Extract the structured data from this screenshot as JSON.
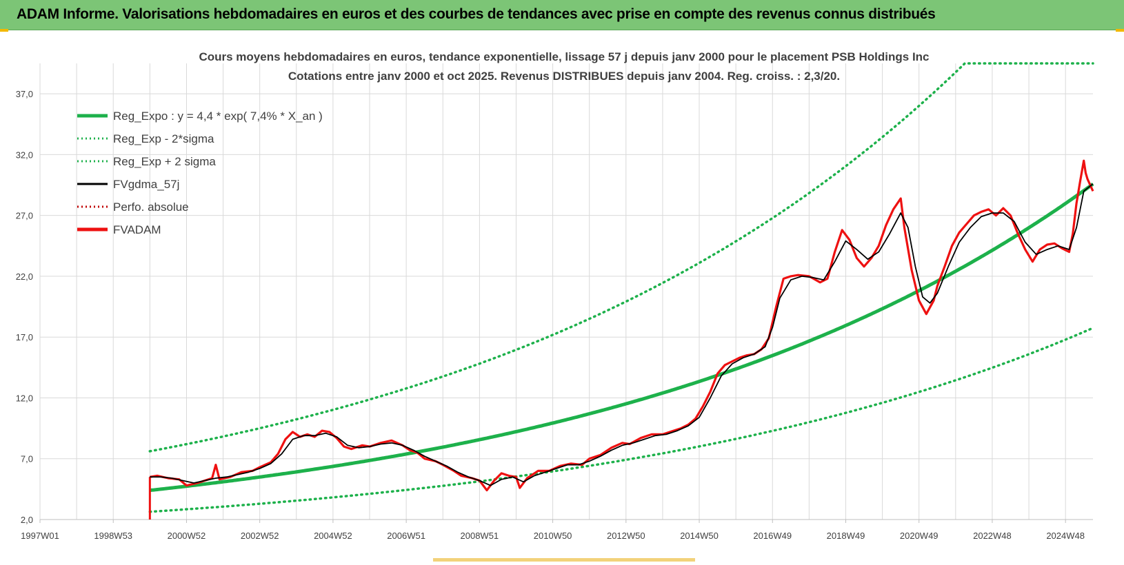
{
  "header": {
    "title": "ADAM Informe. Valorisations hebdomadaires en euros et des courbes de tendances avec prise en compte des revenus connus distribués"
  },
  "colors": {
    "header_bg": "#7cc576",
    "trend": "#1db14b",
    "band": "#1db14b",
    "gdma": "#000000",
    "perfo": "#c00000",
    "fvadam": "#ee1111",
    "grid": "#d9d9d9"
  },
  "chart_data": {
    "type": "line",
    "title_line1": "Cours moyens hebdomadaires en euros, tendance exponentielle, lissage 57 j depuis janv 2000 pour le placement PSB Holdings Inc",
    "title_line2": "Cotations entre janv 2000 et oct 2025. Revenus DISTRIBUES depuis janv 2004. Reg. croiss. : 2,3/20.",
    "x_ticks": [
      "1997W01",
      "1998W53",
      "2000W52",
      "2002W52",
      "2004W52",
      "2006W51",
      "2008W51",
      "2010W50",
      "2012W50",
      "2014W50",
      "2016W49",
      "2018W49",
      "2020W49",
      "2022W48",
      "2024W48"
    ],
    "x_tick_years": [
      1997.0,
      1999.0,
      2001.0,
      2003.0,
      2005.0,
      2007.0,
      2009.0,
      2011.0,
      2013.0,
      2015.0,
      2017.0,
      2019.0,
      2021.0,
      2023.0,
      2025.0
    ],
    "xlim": [
      1997.0,
      2025.75
    ],
    "y_ticks": [
      "2,0",
      "7,0",
      "12,0",
      "17,0",
      "22,0",
      "27,0",
      "32,0",
      "37,0"
    ],
    "ylim": [
      2.0,
      39.5
    ],
    "grid": true,
    "legend_position": "top-left",
    "legend": [
      {
        "label": "Reg_Expo : y = 4,4 * exp( 7,4% *  X_an )",
        "style": "solid-thick",
        "color": "#1db14b"
      },
      {
        "label": "Reg_Exp - 2*sigma",
        "style": "dotted",
        "color": "#1db14b"
      },
      {
        "label": "Reg_Exp + 2 sigma",
        "style": "dotted",
        "color": "#1db14b"
      },
      {
        "label": "FVgdma_57j",
        "style": "solid",
        "color": "#000000"
      },
      {
        "label": "Perfo. absolue",
        "style": "dotted",
        "color": "#c00000"
      },
      {
        "label": "FVADAM",
        "style": "solid-thick",
        "color": "#ee1111"
      }
    ],
    "regression": {
      "a": 4.4,
      "rate": 0.074,
      "x_start": 2000.0,
      "x_end": 2025.75
    },
    "band_lower_factor": 0.6,
    "band_upper_factor": 1.73,
    "band_upper_cap": 39.5,
    "fvadam_start_drop": [
      2.0,
      5.5
    ],
    "fvadam": [
      [
        2000.0,
        5.5
      ],
      [
        2000.2,
        5.6
      ],
      [
        2000.5,
        5.4
      ],
      [
        2000.8,
        5.3
      ],
      [
        2001.0,
        4.8
      ],
      [
        2001.3,
        5.0
      ],
      [
        2001.5,
        5.2
      ],
      [
        2001.7,
        5.4
      ],
      [
        2001.8,
        6.5
      ],
      [
        2001.9,
        5.3
      ],
      [
        2002.2,
        5.5
      ],
      [
        2002.5,
        5.9
      ],
      [
        2002.8,
        6.0
      ],
      [
        2003.0,
        6.3
      ],
      [
        2003.3,
        6.7
      ],
      [
        2003.5,
        7.4
      ],
      [
        2003.7,
        8.6
      ],
      [
        2003.9,
        9.2
      ],
      [
        2004.1,
        8.8
      ],
      [
        2004.3,
        9.0
      ],
      [
        2004.5,
        8.8
      ],
      [
        2004.7,
        9.3
      ],
      [
        2004.9,
        9.2
      ],
      [
        2005.1,
        8.7
      ],
      [
        2005.3,
        8.0
      ],
      [
        2005.5,
        7.8
      ],
      [
        2005.8,
        8.1
      ],
      [
        2006.0,
        8.0
      ],
      [
        2006.3,
        8.3
      ],
      [
        2006.6,
        8.5
      ],
      [
        2006.9,
        8.1
      ],
      [
        2007.1,
        7.7
      ],
      [
        2007.3,
        7.5
      ],
      [
        2007.5,
        7.0
      ],
      [
        2007.8,
        6.8
      ],
      [
        2008.0,
        6.5
      ],
      [
        2008.3,
        6.0
      ],
      [
        2008.5,
        5.6
      ],
      [
        2008.8,
        5.4
      ],
      [
        2009.0,
        5.2
      ],
      [
        2009.2,
        4.4
      ],
      [
        2009.4,
        5.2
      ],
      [
        2009.6,
        5.8
      ],
      [
        2009.8,
        5.6
      ],
      [
        2010.0,
        5.5
      ],
      [
        2010.1,
        4.6
      ],
      [
        2010.3,
        5.4
      ],
      [
        2010.6,
        6.0
      ],
      [
        2010.9,
        6.0
      ],
      [
        2011.2,
        6.4
      ],
      [
        2011.5,
        6.6
      ],
      [
        2011.8,
        6.5
      ],
      [
        2012.0,
        7.0
      ],
      [
        2012.3,
        7.3
      ],
      [
        2012.6,
        7.9
      ],
      [
        2012.9,
        8.3
      ],
      [
        2013.1,
        8.2
      ],
      [
        2013.4,
        8.7
      ],
      [
        2013.7,
        9.0
      ],
      [
        2014.0,
        9.0
      ],
      [
        2014.2,
        9.2
      ],
      [
        2014.5,
        9.5
      ],
      [
        2014.7,
        9.8
      ],
      [
        2014.9,
        10.3
      ],
      [
        2015.1,
        11.3
      ],
      [
        2015.3,
        12.5
      ],
      [
        2015.5,
        14.0
      ],
      [
        2015.7,
        14.7
      ],
      [
        2015.9,
        15.0
      ],
      [
        2016.1,
        15.3
      ],
      [
        2016.3,
        15.5
      ],
      [
        2016.5,
        15.6
      ],
      [
        2016.7,
        16.0
      ],
      [
        2016.9,
        16.9
      ],
      [
        2017.1,
        19.5
      ],
      [
        2017.3,
        21.8
      ],
      [
        2017.5,
        22.0
      ],
      [
        2017.7,
        22.1
      ],
      [
        2018.0,
        22.0
      ],
      [
        2018.3,
        21.5
      ],
      [
        2018.5,
        21.8
      ],
      [
        2018.7,
        24.0
      ],
      [
        2018.9,
        25.8
      ],
      [
        2019.1,
        25.0
      ],
      [
        2019.3,
        23.5
      ],
      [
        2019.5,
        22.8
      ],
      [
        2019.7,
        23.5
      ],
      [
        2019.9,
        24.5
      ],
      [
        2020.1,
        26.2
      ],
      [
        2020.3,
        27.5
      ],
      [
        2020.5,
        28.4
      ],
      [
        2020.6,
        26.0
      ],
      [
        2020.8,
        22.5
      ],
      [
        2021.0,
        20.0
      ],
      [
        2021.2,
        18.9
      ],
      [
        2021.4,
        20.0
      ],
      [
        2021.5,
        21.2
      ],
      [
        2021.7,
        22.8
      ],
      [
        2021.9,
        24.5
      ],
      [
        2022.1,
        25.6
      ],
      [
        2022.3,
        26.3
      ],
      [
        2022.5,
        27.0
      ],
      [
        2022.7,
        27.3
      ],
      [
        2022.9,
        27.5
      ],
      [
        2023.1,
        27.0
      ],
      [
        2023.3,
        27.6
      ],
      [
        2023.5,
        27.0
      ],
      [
        2023.7,
        25.5
      ],
      [
        2023.9,
        24.2
      ],
      [
        2024.1,
        23.2
      ],
      [
        2024.3,
        24.2
      ],
      [
        2024.5,
        24.6
      ],
      [
        2024.7,
        24.7
      ],
      [
        2024.9,
        24.3
      ],
      [
        2025.1,
        24.0
      ],
      [
        2025.2,
        25.5
      ],
      [
        2025.3,
        28.0
      ],
      [
        2025.4,
        29.8
      ],
      [
        2025.5,
        31.5
      ],
      [
        2025.55,
        30.5
      ],
      [
        2025.6,
        30.0
      ],
      [
        2025.75,
        29.0
      ]
    ],
    "fvgdma_57j": [
      [
        2000.0,
        5.5
      ],
      [
        2000.3,
        5.5
      ],
      [
        2000.6,
        5.4
      ],
      [
        2000.9,
        5.2
      ],
      [
        2001.2,
        5.0
      ],
      [
        2001.5,
        5.2
      ],
      [
        2001.8,
        5.4
      ],
      [
        2002.1,
        5.5
      ],
      [
        2002.4,
        5.7
      ],
      [
        2002.7,
        5.9
      ],
      [
        2003.0,
        6.2
      ],
      [
        2003.3,
        6.6
      ],
      [
        2003.6,
        7.4
      ],
      [
        2003.9,
        8.6
      ],
      [
        2004.2,
        8.9
      ],
      [
        2004.5,
        8.9
      ],
      [
        2004.8,
        9.1
      ],
      [
        2005.1,
        8.8
      ],
      [
        2005.4,
        8.1
      ],
      [
        2005.7,
        7.9
      ],
      [
        2006.0,
        8.0
      ],
      [
        2006.3,
        8.2
      ],
      [
        2006.6,
        8.3
      ],
      [
        2006.9,
        8.1
      ],
      [
        2007.2,
        7.7
      ],
      [
        2007.5,
        7.2
      ],
      [
        2007.8,
        6.8
      ],
      [
        2008.1,
        6.4
      ],
      [
        2008.4,
        5.9
      ],
      [
        2008.7,
        5.5
      ],
      [
        2009.0,
        5.2
      ],
      [
        2009.3,
        4.8
      ],
      [
        2009.6,
        5.3
      ],
      [
        2009.9,
        5.5
      ],
      [
        2010.2,
        5.1
      ],
      [
        2010.5,
        5.6
      ],
      [
        2010.8,
        5.9
      ],
      [
        2011.1,
        6.2
      ],
      [
        2011.4,
        6.5
      ],
      [
        2011.7,
        6.5
      ],
      [
        2012.0,
        6.8
      ],
      [
        2012.3,
        7.2
      ],
      [
        2012.6,
        7.7
      ],
      [
        2012.9,
        8.1
      ],
      [
        2013.2,
        8.3
      ],
      [
        2013.5,
        8.6
      ],
      [
        2013.8,
        8.9
      ],
      [
        2014.1,
        9.0
      ],
      [
        2014.4,
        9.3
      ],
      [
        2014.7,
        9.7
      ],
      [
        2015.0,
        10.4
      ],
      [
        2015.3,
        12.0
      ],
      [
        2015.6,
        13.8
      ],
      [
        2015.9,
        14.8
      ],
      [
        2016.2,
        15.3
      ],
      [
        2016.5,
        15.6
      ],
      [
        2016.8,
        16.2
      ],
      [
        2017.0,
        17.8
      ],
      [
        2017.2,
        20.2
      ],
      [
        2017.5,
        21.7
      ],
      [
        2017.8,
        22.0
      ],
      [
        2018.1,
        21.9
      ],
      [
        2018.4,
        21.7
      ],
      [
        2018.7,
        23.2
      ],
      [
        2019.0,
        24.9
      ],
      [
        2019.3,
        24.2
      ],
      [
        2019.6,
        23.4
      ],
      [
        2019.9,
        24.0
      ],
      [
        2020.2,
        25.5
      ],
      [
        2020.5,
        27.2
      ],
      [
        2020.7,
        26.0
      ],
      [
        2020.9,
        22.8
      ],
      [
        2021.1,
        20.3
      ],
      [
        2021.3,
        19.8
      ],
      [
        2021.5,
        20.6
      ],
      [
        2021.8,
        22.8
      ],
      [
        2022.1,
        24.8
      ],
      [
        2022.4,
        26.0
      ],
      [
        2022.7,
        26.9
      ],
      [
        2023.0,
        27.2
      ],
      [
        2023.3,
        27.2
      ],
      [
        2023.6,
        26.5
      ],
      [
        2023.9,
        24.8
      ],
      [
        2024.2,
        23.8
      ],
      [
        2024.5,
        24.2
      ],
      [
        2024.8,
        24.5
      ],
      [
        2025.1,
        24.2
      ],
      [
        2025.3,
        26.0
      ],
      [
        2025.5,
        29.0
      ],
      [
        2025.75,
        29.6
      ]
    ]
  }
}
